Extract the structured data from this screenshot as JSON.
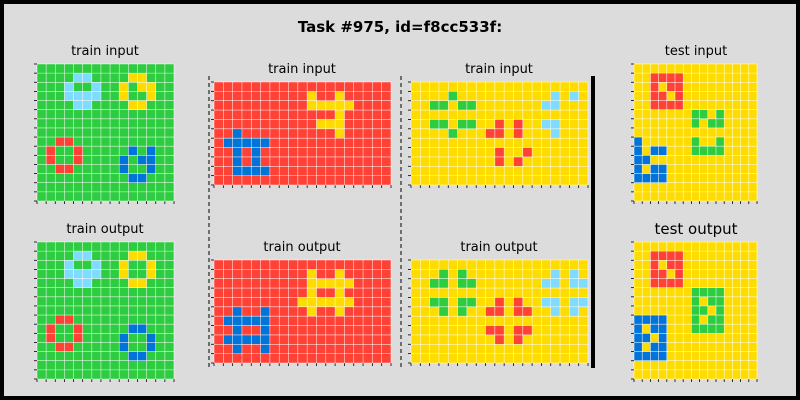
{
  "header": {
    "title": "Task #975, id=f8cc533f:"
  },
  "palette": {
    "green": "#2ecc40",
    "yellow": "#ffdc00",
    "red": "#ff4136",
    "blue": "#0074d9",
    "lightblue": "#7fdbff",
    "gridline": "#ffffff"
  },
  "panels": [
    {
      "id": "pair1-input",
      "label": "train input",
      "base": "green",
      "rows": 15,
      "cols": 15,
      "shapes": [
        {
          "color": "lightblue",
          "r": 1,
          "c": 3,
          "pattern": [
            "0110",
            "1001",
            "1111",
            "0110"
          ]
        },
        {
          "color": "yellow",
          "r": 1,
          "c": 9,
          "pattern": [
            "0110",
            "1011",
            "1001",
            "0110"
          ]
        },
        {
          "color": "red",
          "r": 8,
          "c": 1,
          "pattern": [
            "0110",
            "1001",
            "1001",
            "0110"
          ]
        },
        {
          "color": "blue",
          "r": 9,
          "c": 9,
          "pattern": [
            "0101",
            "1011",
            "1001",
            "0110"
          ]
        }
      ]
    },
    {
      "id": "pair1-output",
      "label": "train output",
      "base": "green",
      "rows": 15,
      "cols": 15,
      "shapes": [
        {
          "color": "lightblue",
          "r": 1,
          "c": 3,
          "pattern": [
            "0110",
            "1001",
            "1111",
            "0110"
          ]
        },
        {
          "color": "yellow",
          "r": 1,
          "c": 9,
          "pattern": [
            "0110",
            "1001",
            "1001",
            "0110"
          ]
        },
        {
          "color": "red",
          "r": 8,
          "c": 1,
          "pattern": [
            "0110",
            "1001",
            "1001",
            "0110"
          ]
        },
        {
          "color": "blue",
          "r": 9,
          "c": 9,
          "pattern": [
            "0110",
            "1001",
            "1001",
            "0110"
          ]
        }
      ]
    },
    {
      "id": "pair2-input",
      "label": "train input",
      "base": "red",
      "rows": 11,
      "cols": 19,
      "shapes": [
        {
          "color": "yellow",
          "r": 1,
          "c": 10,
          "pattern": [
            "10010",
            "11111",
            "00010",
            "01110",
            "00010"
          ]
        },
        {
          "color": "blue",
          "r": 5,
          "c": 1,
          "pattern": [
            "01000",
            "11111",
            "01010",
            "01010",
            "01111"
          ]
        }
      ]
    },
    {
      "id": "pair2-output",
      "label": "train output",
      "base": "red",
      "rows": 11,
      "cols": 19,
      "shapes": [
        {
          "color": "yellow",
          "r": 1,
          "c": 9,
          "pattern": [
            "010010",
            "011111",
            "010010",
            "111111",
            "010010"
          ]
        },
        {
          "color": "blue",
          "r": 5,
          "c": 1,
          "pattern": [
            "01001",
            "11111",
            "01001",
            "11111",
            "01001"
          ]
        }
      ]
    },
    {
      "id": "pair3-input",
      "label": "train input",
      "base": "yellow",
      "rows": 11,
      "cols": 19,
      "shapes": [
        {
          "color": "green",
          "r": 1,
          "c": 2,
          "pattern": [
            "00100",
            "11011",
            "00000",
            "11011",
            "00100"
          ]
        },
        {
          "color": "lightblue",
          "r": 1,
          "c": 14,
          "pattern": [
            "01010",
            "11000",
            "00000",
            "11000",
            "01000"
          ]
        },
        {
          "color": "red",
          "r": 4,
          "c": 8,
          "pattern": [
            "01010",
            "11010",
            "00000",
            "01001",
            "01010"
          ]
        }
      ]
    },
    {
      "id": "pair3-output",
      "label": "train output",
      "base": "yellow",
      "rows": 11,
      "cols": 19,
      "shapes": [
        {
          "color": "green",
          "r": 1,
          "c": 2,
          "pattern": [
            "01010",
            "11011",
            "00000",
            "11011",
            "01010"
          ]
        },
        {
          "color": "lightblue",
          "r": 1,
          "c": 14,
          "pattern": [
            "01010",
            "11011",
            "00000",
            "11011",
            "01010"
          ]
        },
        {
          "color": "red",
          "r": 4,
          "c": 8,
          "pattern": [
            "01010",
            "11011",
            "00000",
            "11011",
            "01010"
          ]
        }
      ]
    },
    {
      "id": "test-input",
      "label": "test input",
      "base": "yellow",
      "rows": 15,
      "cols": 15,
      "shapes": [
        {
          "color": "red",
          "r": 1,
          "c": 2,
          "pattern": [
            "1111",
            "1011",
            "1101",
            "1111"
          ]
        },
        {
          "color": "green",
          "r": 5,
          "c": 7,
          "pattern": [
            "1101",
            "1011",
            "0000",
            "1001",
            "1111"
          ]
        },
        {
          "color": "blue",
          "r": 8,
          "c": 0,
          "pattern": [
            "1000",
            "1011",
            "1100",
            "1011",
            "1111"
          ]
        }
      ]
    },
    {
      "id": "test-output",
      "label": "test output",
      "base": "yellow",
      "rows": 15,
      "cols": 15,
      "shapes": [
        {
          "color": "red",
          "r": 1,
          "c": 2,
          "pattern": [
            "1111",
            "1011",
            "1101",
            "1111"
          ]
        },
        {
          "color": "green",
          "r": 5,
          "c": 7,
          "pattern": [
            "1111",
            "1011",
            "1101",
            "1011",
            "1111"
          ]
        },
        {
          "color": "blue",
          "r": 8,
          "c": 0,
          "pattern": [
            "1111",
            "1011",
            "1101",
            "1011",
            "1111"
          ]
        }
      ]
    }
  ]
}
